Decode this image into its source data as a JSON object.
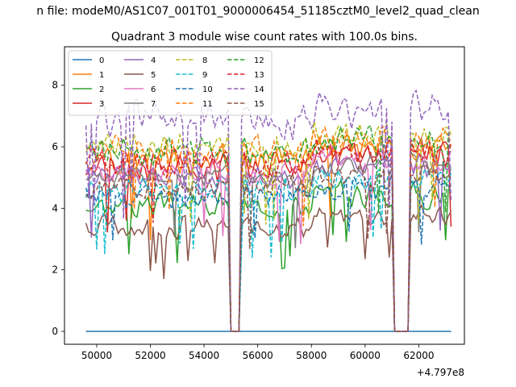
{
  "chart_data": {
    "type": "line",
    "suptitle": "n file: modeM0/AS1C07_001T01_9000006454_51185cztM0_level2_quad_clean",
    "title": "Quadrant 3 module wise count rates with 100.0s bins.",
    "xlabel": "",
    "ylabel": "",
    "x_offset_label": "+4.797e8",
    "xlim": [
      48800,
      63700
    ],
    "ylim": [
      -0.42,
      9.25
    ],
    "xticks": [
      50000,
      52000,
      54000,
      56000,
      58000,
      60000,
      62000
    ],
    "xtick_labels": [
      "50000",
      "52000",
      "54000",
      "56000",
      "58000",
      "60000",
      "62000"
    ],
    "yticks": [
      0,
      2,
      4,
      6,
      8
    ],
    "ytick_labels": [
      "0",
      "2",
      "4",
      "6",
      "8"
    ],
    "x_range": [
      49600,
      63200
    ],
    "bin_size": 100,
    "gaps": [
      [
        54900,
        55400
      ],
      [
        61000,
        61700
      ]
    ],
    "legend_position": "upper-left",
    "series": [
      {
        "name": "0",
        "color": "#1f77b4",
        "dash": false,
        "base": 0.0,
        "amp": 0.0,
        "seed": 1
      },
      {
        "name": "1",
        "color": "#ff7f0e",
        "dash": false,
        "base": 5.6,
        "amp": 0.55,
        "seed": 2
      },
      {
        "name": "2",
        "color": "#2ca02c",
        "dash": false,
        "base": 4.1,
        "amp": 0.5,
        "seed": 3
      },
      {
        "name": "3",
        "color": "#d62728",
        "dash": false,
        "base": 5.4,
        "amp": 0.6,
        "seed": 4
      },
      {
        "name": "4",
        "color": "#9467bd",
        "dash": false,
        "base": 5.0,
        "amp": 0.45,
        "seed": 5
      },
      {
        "name": "5",
        "color": "#8c564b",
        "dash": false,
        "base": 3.4,
        "amp": 0.45,
        "seed": 6
      },
      {
        "name": "6",
        "color": "#e377c2",
        "dash": false,
        "base": 5.2,
        "amp": 0.5,
        "seed": 7
      },
      {
        "name": "7",
        "color": "#7f7f7f",
        "dash": false,
        "base": 5.0,
        "amp": 0.5,
        "seed": 8
      },
      {
        "name": "8",
        "color": "#bcbd22",
        "dash": true,
        "base": 6.0,
        "amp": 0.55,
        "seed": 9
      },
      {
        "name": "9",
        "color": "#17becf",
        "dash": true,
        "base": 4.6,
        "amp": 0.5,
        "seed": 10
      },
      {
        "name": "10",
        "color": "#1f77b4",
        "dash": true,
        "base": 4.4,
        "amp": 0.55,
        "seed": 11
      },
      {
        "name": "11",
        "color": "#ff7f0e",
        "dash": true,
        "base": 5.9,
        "amp": 0.55,
        "seed": 12
      },
      {
        "name": "12",
        "color": "#2ca02c",
        "dash": true,
        "base": 5.9,
        "amp": 0.55,
        "seed": 13
      },
      {
        "name": "13",
        "color": "#d62728",
        "dash": true,
        "base": 5.5,
        "amp": 0.55,
        "seed": 14
      },
      {
        "name": "14",
        "color": "#9467bd",
        "dash": true,
        "base": 6.9,
        "amp": 0.7,
        "seed": 15
      },
      {
        "name": "15",
        "color": "#8c564b",
        "dash": true,
        "base": 4.7,
        "amp": 0.5,
        "seed": 16
      }
    ]
  }
}
